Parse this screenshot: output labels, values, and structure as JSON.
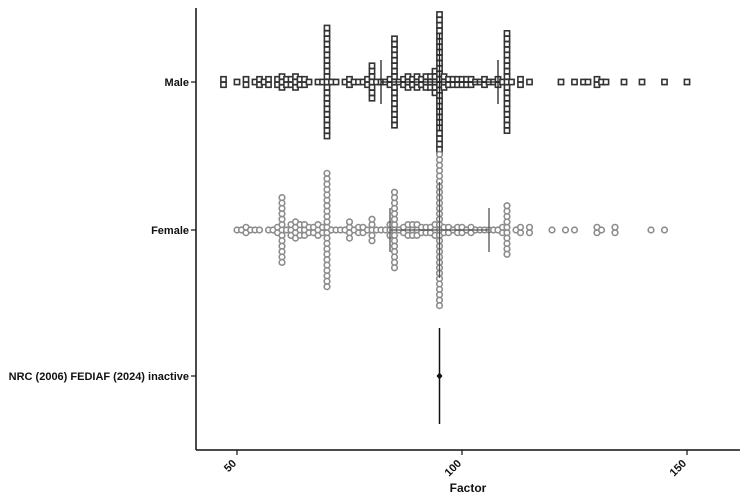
{
  "chart_data": {
    "type": "scatter",
    "subtype": "beeswarm-dotplot",
    "title": "",
    "xlabel": "Factor",
    "ylabel": "",
    "xlim": [
      40,
      160
    ],
    "xticks": [
      50,
      100,
      150
    ],
    "xtick_labels": [
      "50",
      "100",
      "150"
    ],
    "categories": [
      "Male",
      "Female",
      "NRC (2006) FEDIAF (2024) inactive"
    ],
    "grid": false,
    "legend": "none",
    "colors": {
      "Male": "#333333",
      "Female": "#8c8c8c",
      "Reference": "#111111"
    },
    "series": [
      {
        "category": "Male",
        "marker": "square",
        "mean": 95,
        "sd": 13,
        "values": [
          47,
          47,
          50,
          52,
          52,
          54,
          55,
          55,
          56,
          57,
          57,
          59,
          59,
          60,
          60,
          60,
          61,
          61,
          62,
          62,
          63,
          63,
          63,
          64,
          64,
          65,
          65,
          66,
          68,
          69,
          70,
          70,
          70,
          70,
          70,
          70,
          70,
          70,
          70,
          70,
          70,
          70,
          70,
          70,
          70,
          70,
          70,
          70,
          70,
          70,
          70,
          71,
          72,
          74,
          75,
          75,
          76,
          77,
          78,
          79,
          79,
          80,
          80,
          80,
          80,
          80,
          80,
          80,
          81,
          82,
          83,
          84,
          84,
          85,
          85,
          85,
          85,
          85,
          85,
          85,
          85,
          85,
          85,
          85,
          85,
          85,
          85,
          85,
          85,
          85,
          86,
          87,
          87,
          88,
          88,
          88,
          89,
          89,
          90,
          90,
          90,
          91,
          91,
          92,
          92,
          92,
          93,
          93,
          93,
          94,
          94,
          94,
          94,
          94,
          95,
          95,
          95,
          95,
          95,
          95,
          95,
          95,
          95,
          95,
          95,
          95,
          95,
          95,
          95,
          95,
          95,
          95,
          95,
          95,
          95,
          95,
          95,
          95,
          95,
          95,
          96,
          96,
          96,
          97,
          97,
          98,
          98,
          99,
          99,
          100,
          100,
          101,
          101,
          102,
          102,
          103,
          104,
          105,
          105,
          106,
          107,
          108,
          108,
          109,
          110,
          110,
          110,
          110,
          110,
          110,
          110,
          110,
          110,
          110,
          110,
          110,
          110,
          110,
          110,
          110,
          110,
          110,
          110,
          111,
          113,
          113,
          115,
          122,
          125,
          127,
          128,
          130,
          130,
          131,
          132,
          136,
          140,
          145,
          150
        ]
      },
      {
        "category": "Female",
        "marker": "circle",
        "mean": 95,
        "sd": 11,
        "values": [
          50,
          51,
          52,
          52,
          53,
          54,
          55,
          57,
          58,
          59,
          59,
          60,
          60,
          60,
          60,
          60,
          60,
          60,
          60,
          60,
          60,
          60,
          60,
          60,
          61,
          62,
          62,
          62,
          63,
          63,
          63,
          63,
          64,
          64,
          64,
          65,
          65,
          65,
          66,
          66,
          67,
          67,
          68,
          68,
          68,
          69,
          69,
          70,
          70,
          70,
          70,
          70,
          70,
          70,
          70,
          70,
          70,
          70,
          70,
          70,
          70,
          70,
          70,
          70,
          70,
          70,
          70,
          70,
          70,
          71,
          72,
          73,
          74,
          75,
          75,
          75,
          75,
          76,
          77,
          77,
          78,
          78,
          79,
          80,
          80,
          80,
          80,
          80,
          81,
          82,
          83,
          84,
          84,
          84,
          85,
          85,
          85,
          85,
          85,
          85,
          85,
          85,
          85,
          85,
          85,
          85,
          85,
          85,
          85,
          86,
          87,
          87,
          88,
          88,
          88,
          89,
          89,
          89,
          90,
          90,
          90,
          91,
          91,
          92,
          92,
          93,
          93,
          94,
          94,
          94,
          95,
          95,
          95,
          95,
          95,
          95,
          95,
          95,
          95,
          95,
          95,
          95,
          95,
          95,
          95,
          95,
          95,
          95,
          95,
          95,
          95,
          95,
          95,
          95,
          95,
          95,
          95,
          95,
          95,
          96,
          96,
          97,
          97,
          98,
          99,
          99,
          100,
          100,
          101,
          102,
          102,
          103,
          104,
          105,
          106,
          107,
          108,
          109,
          109,
          110,
          110,
          110,
          110,
          110,
          110,
          110,
          110,
          110,
          110,
          112,
          113,
          113,
          115,
          115,
          120,
          123,
          125,
          130,
          130,
          131,
          134,
          134,
          142,
          145
        ]
      },
      {
        "category": "NRC (2006) FEDIAF (2024) inactive",
        "marker": "diamond",
        "mean": 95,
        "sd": 0,
        "range": [
          95,
          95
        ]
      }
    ]
  }
}
